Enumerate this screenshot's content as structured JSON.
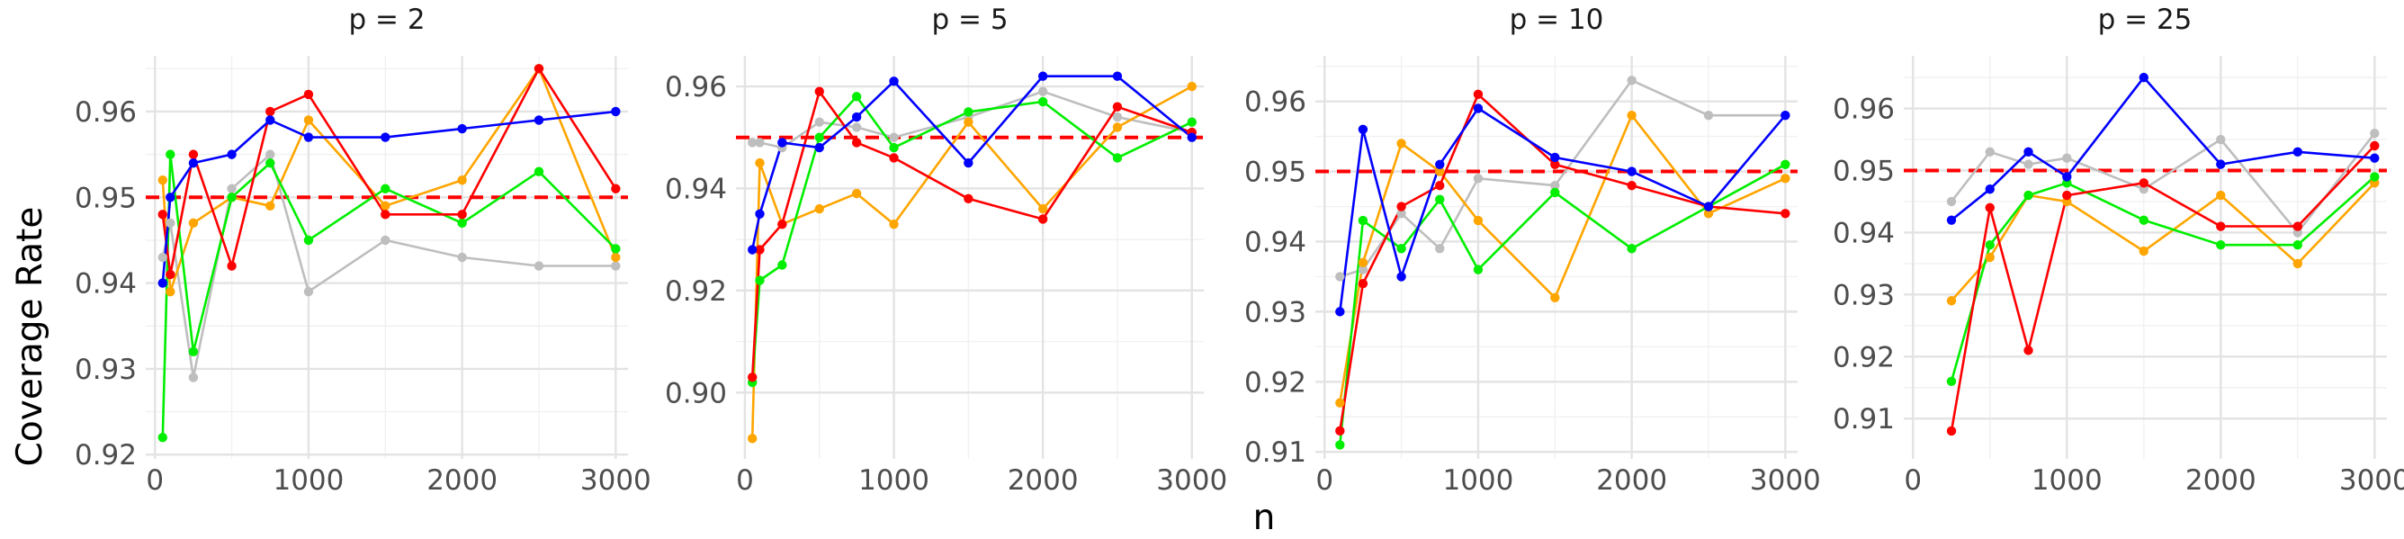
{
  "chart_data": {
    "type": "line",
    "xlabel": "n",
    "ylabel": "Coverage Rate",
    "reference_line": {
      "y": 0.95,
      "color": "#ff0000",
      "style": "dashed"
    },
    "grid": "on",
    "legend": "none",
    "series_colors": [
      "#bebebe",
      "#ffa500",
      "#00ee00",
      "#ff0000",
      "#0000ff"
    ],
    "panels": [
      {
        "title": "p = 2",
        "xlim": [
          -60,
          3080
        ],
        "ylim": [
          0.9195,
          0.9665
        ],
        "xticks": [
          0,
          1000,
          2000,
          3000
        ],
        "xtick_labels": [
          "0",
          "1000",
          "2000",
          "3000"
        ],
        "yticks": [
          0.92,
          0.93,
          0.94,
          0.95,
          0.96
        ],
        "ytick_labels": [
          "0.92",
          "0.93",
          "0.94",
          "0.95",
          "0.96"
        ],
        "x": [
          50,
          100,
          250,
          500,
          750,
          1000,
          1500,
          2000,
          2500,
          3000
        ],
        "series": [
          {
            "color": "#bebebe",
            "values": [
              0.943,
              0.947,
              0.929,
              0.951,
              0.955,
              0.939,
              0.945,
              0.943,
              0.942,
              0.942
            ]
          },
          {
            "color": "#ffa500",
            "values": [
              0.952,
              0.939,
              0.947,
              0.95,
              0.949,
              0.959,
              0.949,
              0.952,
              0.965,
              0.943
            ]
          },
          {
            "color": "#00ee00",
            "values": [
              0.922,
              0.955,
              0.932,
              0.95,
              0.954,
              0.945,
              0.951,
              0.947,
              0.953,
              0.944
            ]
          },
          {
            "color": "#ff0000",
            "values": [
              0.948,
              0.941,
              0.955,
              0.942,
              0.96,
              0.962,
              0.948,
              0.948,
              0.965,
              0.951
            ]
          },
          {
            "color": "#0000ff",
            "values": [
              0.94,
              0.95,
              0.954,
              0.955,
              0.959,
              0.957,
              0.957,
              0.958,
              0.959,
              0.96
            ]
          }
        ]
      },
      {
        "title": "p = 5",
        "xlim": [
          -60,
          3080
        ],
        "ylim": [
          0.887,
          0.966
        ],
        "xticks": [
          0,
          1000,
          2000,
          3000
        ],
        "xtick_labels": [
          "0",
          "1000",
          "2000",
          "3000"
        ],
        "yticks": [
          0.9,
          0.92,
          0.94,
          0.96
        ],
        "ytick_labels": [
          "0.90",
          "0.92",
          "0.94",
          "0.96"
        ],
        "x": [
          50,
          100,
          250,
          500,
          750,
          1000,
          1500,
          2000,
          2500,
          3000
        ],
        "series": [
          {
            "color": "#bebebe",
            "values": [
              0.949,
              0.949,
              0.948,
              0.953,
              0.952,
              0.95,
              0.954,
              0.959,
              0.954,
              0.951
            ]
          },
          {
            "color": "#ffa500",
            "values": [
              0.891,
              0.945,
              0.933,
              0.936,
              0.939,
              0.933,
              0.953,
              0.936,
              0.952,
              0.96
            ]
          },
          {
            "color": "#00ee00",
            "values": [
              0.902,
              0.922,
              0.925,
              0.95,
              0.958,
              0.948,
              0.955,
              0.957,
              0.946,
              0.953
            ]
          },
          {
            "color": "#ff0000",
            "values": [
              0.903,
              0.928,
              0.933,
              0.959,
              0.949,
              0.946,
              0.938,
              0.934,
              0.956,
              0.951
            ]
          },
          {
            "color": "#0000ff",
            "values": [
              0.928,
              0.935,
              0.949,
              0.948,
              0.954,
              0.961,
              0.945,
              0.962,
              0.962,
              0.95
            ]
          }
        ]
      },
      {
        "title": "p = 10",
        "xlim": [
          -60,
          3080
        ],
        "ylim": [
          0.909,
          0.9665
        ],
        "xticks": [
          0,
          1000,
          2000,
          3000
        ],
        "xtick_labels": [
          "0",
          "1000",
          "2000",
          "3000"
        ],
        "yticks": [
          0.91,
          0.92,
          0.93,
          0.94,
          0.95,
          0.96
        ],
        "ytick_labels": [
          "0.91",
          "0.92",
          "0.93",
          "0.94",
          "0.95",
          "0.96"
        ],
        "x": [
          100,
          250,
          500,
          750,
          1000,
          1500,
          2000,
          2500,
          3000
        ],
        "series": [
          {
            "color": "#bebebe",
            "values": [
              0.935,
              0.936,
              0.944,
              0.939,
              0.949,
              0.948,
              0.963,
              0.958,
              0.958
            ]
          },
          {
            "color": "#ffa500",
            "values": [
              0.917,
              0.937,
              0.954,
              0.95,
              0.943,
              0.932,
              0.958,
              0.944,
              0.949
            ]
          },
          {
            "color": "#00ee00",
            "values": [
              0.911,
              0.943,
              0.939,
              0.946,
              0.936,
              0.947,
              0.939,
              0.945,
              0.951
            ]
          },
          {
            "color": "#ff0000",
            "values": [
              0.913,
              0.934,
              0.945,
              0.948,
              0.961,
              0.951,
              0.948,
              0.945,
              0.944
            ]
          },
          {
            "color": "#0000ff",
            "values": [
              0.93,
              0.956,
              0.935,
              0.951,
              0.959,
              0.952,
              0.95,
              0.945,
              0.958
            ]
          }
        ]
      },
      {
        "title": "p = 25",
        "xlim": [
          -60,
          3080
        ],
        "ylim": [
          0.9035,
          0.9685
        ],
        "xticks": [
          0,
          1000,
          2000,
          3000
        ],
        "xtick_labels": [
          "0",
          "1000",
          "2000",
          "3000"
        ],
        "yticks": [
          0.91,
          0.92,
          0.93,
          0.94,
          0.95,
          0.96
        ],
        "ytick_labels": [
          "0.91",
          "0.92",
          "0.93",
          "0.94",
          "0.95",
          "0.96"
        ],
        "x": [
          250,
          500,
          750,
          1000,
          1500,
          2000,
          2500,
          3000
        ],
        "series": [
          {
            "color": "#bebebe",
            "values": [
              0.945,
              0.953,
              0.951,
              0.952,
              0.947,
              0.955,
              0.94,
              0.956
            ]
          },
          {
            "color": "#ffa500",
            "values": [
              0.929,
              0.936,
              0.946,
              0.945,
              0.937,
              0.946,
              0.935,
              0.948
            ]
          },
          {
            "color": "#00ee00",
            "values": [
              0.916,
              0.938,
              0.946,
              0.948,
              0.942,
              0.938,
              0.938,
              0.949
            ]
          },
          {
            "color": "#ff0000",
            "values": [
              0.908,
              0.944,
              0.921,
              0.946,
              0.948,
              0.941,
              0.941,
              0.954
            ]
          },
          {
            "color": "#0000ff",
            "values": [
              0.942,
              0.947,
              0.953,
              0.949,
              0.965,
              0.951,
              0.953,
              0.952
            ]
          }
        ]
      }
    ]
  }
}
